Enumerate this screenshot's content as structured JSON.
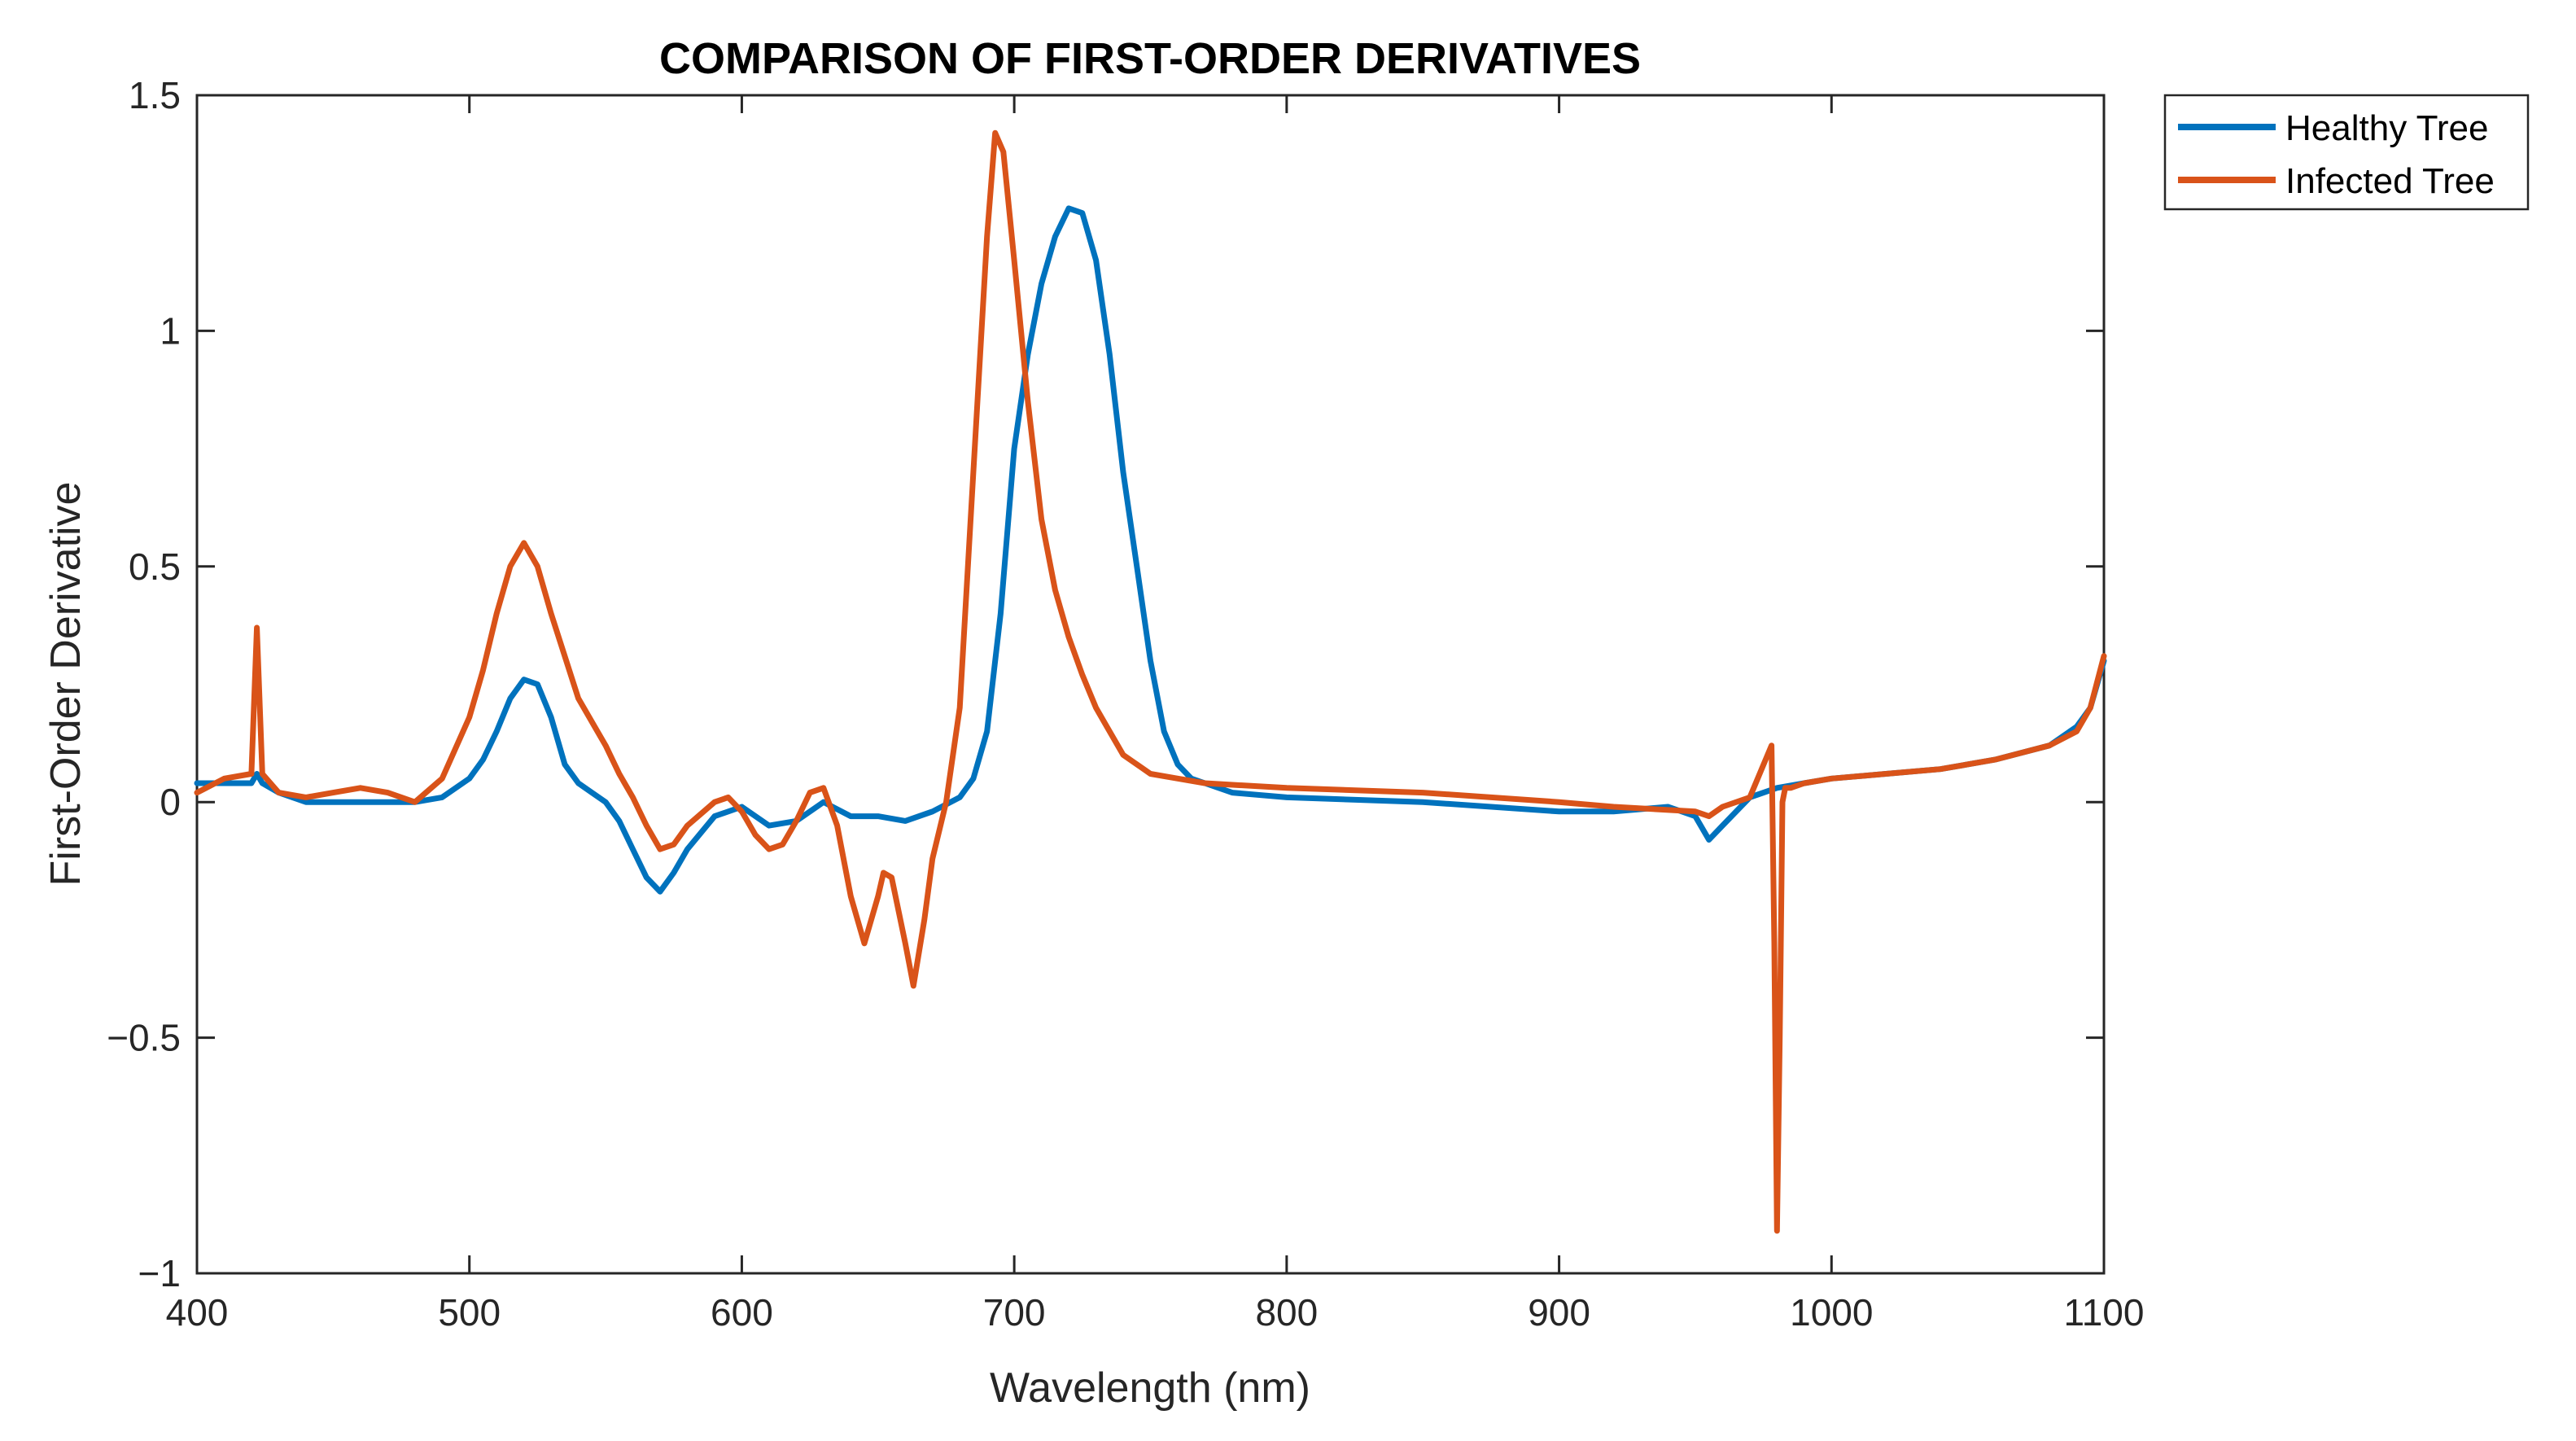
{
  "chart_data": {
    "type": "line",
    "title": "COMPARISON OF FIRST-ORDER DERIVATIVES",
    "xlabel": "Wavelength (nm)",
    "ylabel": "First-Order Derivative",
    "xlim": [
      400,
      1100
    ],
    "ylim": [
      -1,
      1.5
    ],
    "xticks": [
      400,
      500,
      600,
      700,
      800,
      900,
      1000,
      1100
    ],
    "xtick_labels": [
      "400",
      "500",
      "600",
      "700",
      "800",
      "900",
      "1000",
      "1100"
    ],
    "yticks": [
      -1,
      -0.5,
      0,
      0.5,
      1,
      1.5
    ],
    "ytick_labels": [
      "−1",
      "−0.5",
      "0",
      "0.5",
      "1",
      "1.5"
    ],
    "grid": false,
    "legend_placement": "outside top-right",
    "series": [
      {
        "name": "Healthy Tree",
        "color": "#0072BD",
        "x": [
          400,
          410,
          420,
          422,
          424,
          430,
          440,
          450,
          460,
          470,
          480,
          490,
          500,
          505,
          510,
          515,
          520,
          525,
          530,
          535,
          540,
          545,
          550,
          555,
          560,
          565,
          570,
          575,
          580,
          590,
          600,
          610,
          620,
          630,
          640,
          650,
          660,
          670,
          680,
          685,
          690,
          695,
          700,
          705,
          710,
          715,
          720,
          725,
          730,
          735,
          740,
          745,
          750,
          755,
          760,
          765,
          770,
          780,
          800,
          850,
          900,
          920,
          940,
          950,
          955,
          960,
          970,
          980,
          990,
          1000,
          1020,
          1040,
          1060,
          1080,
          1090,
          1095,
          1100
        ],
        "y": [
          0.04,
          0.04,
          0.04,
          0.06,
          0.04,
          0.02,
          0.0,
          0.0,
          0.0,
          0.0,
          0.0,
          0.01,
          0.05,
          0.09,
          0.15,
          0.22,
          0.26,
          0.25,
          0.18,
          0.08,
          0.04,
          0.02,
          0.0,
          -0.04,
          -0.1,
          -0.16,
          -0.19,
          -0.15,
          -0.1,
          -0.03,
          -0.01,
          -0.05,
          -0.04,
          0.0,
          -0.03,
          -0.03,
          -0.04,
          -0.02,
          0.01,
          0.05,
          0.15,
          0.4,
          0.75,
          0.95,
          1.1,
          1.2,
          1.26,
          1.25,
          1.15,
          0.95,
          0.7,
          0.5,
          0.3,
          0.15,
          0.08,
          0.05,
          0.04,
          0.02,
          0.01,
          0.0,
          -0.02,
          -0.02,
          -0.01,
          -0.03,
          -0.08,
          -0.05,
          0.01,
          0.03,
          0.04,
          0.05,
          0.06,
          0.07,
          0.09,
          0.12,
          0.16,
          0.2,
          0.3
        ]
      },
      {
        "name": "Infected Tree",
        "color": "#D95319",
        "x": [
          400,
          410,
          420,
          422,
          424,
          430,
          440,
          450,
          460,
          470,
          480,
          490,
          500,
          505,
          510,
          515,
          520,
          525,
          530,
          540,
          545,
          550,
          555,
          560,
          565,
          570,
          575,
          580,
          590,
          595,
          600,
          605,
          610,
          615,
          620,
          625,
          630,
          635,
          640,
          645,
          650,
          652,
          655,
          660,
          663,
          667,
          670,
          675,
          680,
          685,
          690,
          693,
          696,
          700,
          705,
          710,
          715,
          720,
          725,
          730,
          735,
          740,
          745,
          750,
          760,
          770,
          800,
          850,
          900,
          920,
          950,
          955,
          960,
          970,
          978,
          979,
          980,
          981,
          982,
          983,
          985,
          990,
          1000,
          1020,
          1040,
          1060,
          1080,
          1090,
          1095,
          1100
        ],
        "y": [
          0.02,
          0.05,
          0.06,
          0.37,
          0.06,
          0.02,
          0.01,
          0.02,
          0.03,
          0.02,
          0.0,
          0.05,
          0.18,
          0.28,
          0.4,
          0.5,
          0.55,
          0.5,
          0.4,
          0.22,
          0.17,
          0.12,
          0.06,
          0.01,
          -0.05,
          -0.1,
          -0.09,
          -0.05,
          0.0,
          0.01,
          -0.02,
          -0.07,
          -0.1,
          -0.09,
          -0.04,
          0.02,
          0.03,
          -0.05,
          -0.2,
          -0.3,
          -0.2,
          -0.15,
          -0.16,
          -0.3,
          -0.39,
          -0.25,
          -0.12,
          0.0,
          0.2,
          0.7,
          1.2,
          1.42,
          1.38,
          1.15,
          0.85,
          0.6,
          0.45,
          0.35,
          0.27,
          0.2,
          0.15,
          0.1,
          0.08,
          0.06,
          0.05,
          0.04,
          0.03,
          0.02,
          0.0,
          -0.01,
          -0.02,
          -0.03,
          -0.01,
          0.01,
          0.12,
          -0.3,
          -0.91,
          -0.5,
          0.0,
          0.03,
          0.03,
          0.04,
          0.05,
          0.06,
          0.07,
          0.09,
          0.12,
          0.15,
          0.2,
          0.31
        ]
      }
    ]
  }
}
